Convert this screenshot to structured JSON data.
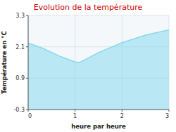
{
  "chart_data": {
    "type": "area",
    "title": "Evolution de la température",
    "xlabel": "heure par heure",
    "ylabel": "Température en °C",
    "x": [
      0,
      0.3,
      0.7,
      1.0,
      1.1,
      1.5,
      2.0,
      2.5,
      3.0
    ],
    "values": [
      2.25,
      2.05,
      1.72,
      1.52,
      1.5,
      1.88,
      2.26,
      2.55,
      2.75
    ],
    "color": "#89d8ee",
    "xlim": [
      0,
      3
    ],
    "ylim": [
      -0.3,
      3.3
    ],
    "xticks": [
      0,
      1,
      2,
      3
    ],
    "yticks": [
      -0.3,
      0.9,
      2.1,
      3.3
    ],
    "grid": true
  }
}
